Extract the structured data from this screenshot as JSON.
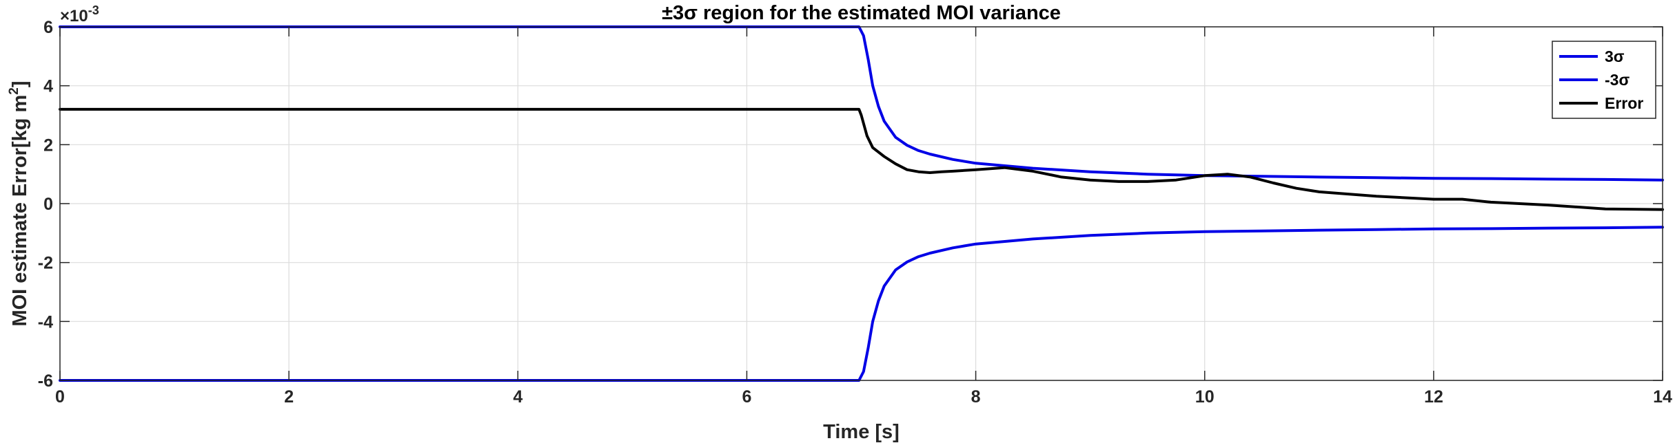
{
  "chart_data": {
    "type": "line",
    "title": "±3σ region for the estimated MOI variance",
    "xlabel": "Time [s]",
    "ylabel": "MOI estimate Error[kg m²]",
    "ylabel_main": "MOI estimate Error[kg m",
    "ylabel_sup": "2",
    "ylabel_tail": "]",
    "y_exponent_base": "×10",
    "y_exponent_power": "-3",
    "xlim": [
      0,
      14
    ],
    "ylim": [
      -6,
      6
    ],
    "xticks": [
      0,
      2,
      4,
      6,
      8,
      10,
      12,
      14
    ],
    "yticks": [
      -6,
      -4,
      -2,
      0,
      2,
      4,
      6
    ],
    "xtick_labels": [
      "0",
      "2",
      "4",
      "6",
      "8",
      "10",
      "12",
      "14"
    ],
    "ytick_labels": [
      "-6",
      "-4",
      "-2",
      "0",
      "2",
      "4",
      "6"
    ],
    "grid": true,
    "legend_position": "top-right",
    "series": [
      {
        "name": "3σ",
        "color": "#0000e6",
        "x": [
          0,
          6.98,
          7.02,
          7.06,
          7.1,
          7.15,
          7.2,
          7.3,
          7.4,
          7.5,
          7.6,
          7.8,
          8.0,
          8.5,
          9.0,
          9.5,
          10.0,
          10.5,
          11.0,
          11.5,
          12.0,
          12.5,
          13.0,
          13.5,
          14.0
        ],
        "y": [
          6,
          6,
          5.7,
          4.9,
          4.0,
          3.3,
          2.8,
          2.25,
          1.98,
          1.8,
          1.68,
          1.5,
          1.37,
          1.2,
          1.08,
          1.0,
          0.95,
          0.93,
          0.9,
          0.88,
          0.86,
          0.85,
          0.83,
          0.82,
          0.8
        ]
      },
      {
        "name": "-3σ",
        "color": "#0000e6",
        "x": [
          0,
          6.98,
          7.02,
          7.06,
          7.1,
          7.15,
          7.2,
          7.3,
          7.4,
          7.5,
          7.6,
          7.8,
          8.0,
          8.5,
          9.0,
          9.5,
          10.0,
          10.5,
          11.0,
          11.5,
          12.0,
          12.5,
          13.0,
          13.5,
          14.0
        ],
        "y": [
          -6,
          -6,
          -5.7,
          -4.9,
          -4.0,
          -3.3,
          -2.8,
          -2.25,
          -1.98,
          -1.8,
          -1.68,
          -1.5,
          -1.37,
          -1.2,
          -1.08,
          -1.0,
          -0.95,
          -0.93,
          -0.9,
          -0.88,
          -0.86,
          -0.85,
          -0.83,
          -0.82,
          -0.8
        ]
      },
      {
        "name": "Error",
        "color": "#000000",
        "x": [
          0,
          6.98,
          7.0,
          7.05,
          7.1,
          7.2,
          7.3,
          7.4,
          7.5,
          7.6,
          7.7,
          7.8,
          8.0,
          8.25,
          8.5,
          8.75,
          9.0,
          9.25,
          9.5,
          9.75,
          10.0,
          10.2,
          10.4,
          10.6,
          10.8,
          11.0,
          11.5,
          12.0,
          12.25,
          12.5,
          13.0,
          13.5,
          14.0
        ],
        "y": [
          3.2,
          3.2,
          3.0,
          2.3,
          1.9,
          1.6,
          1.35,
          1.15,
          1.08,
          1.05,
          1.08,
          1.1,
          1.15,
          1.22,
          1.1,
          0.9,
          0.8,
          0.75,
          0.75,
          0.8,
          0.95,
          1.0,
          0.9,
          0.7,
          0.52,
          0.4,
          0.25,
          0.15,
          0.15,
          0.05,
          -0.05,
          -0.18,
          -0.2
        ]
      }
    ]
  }
}
